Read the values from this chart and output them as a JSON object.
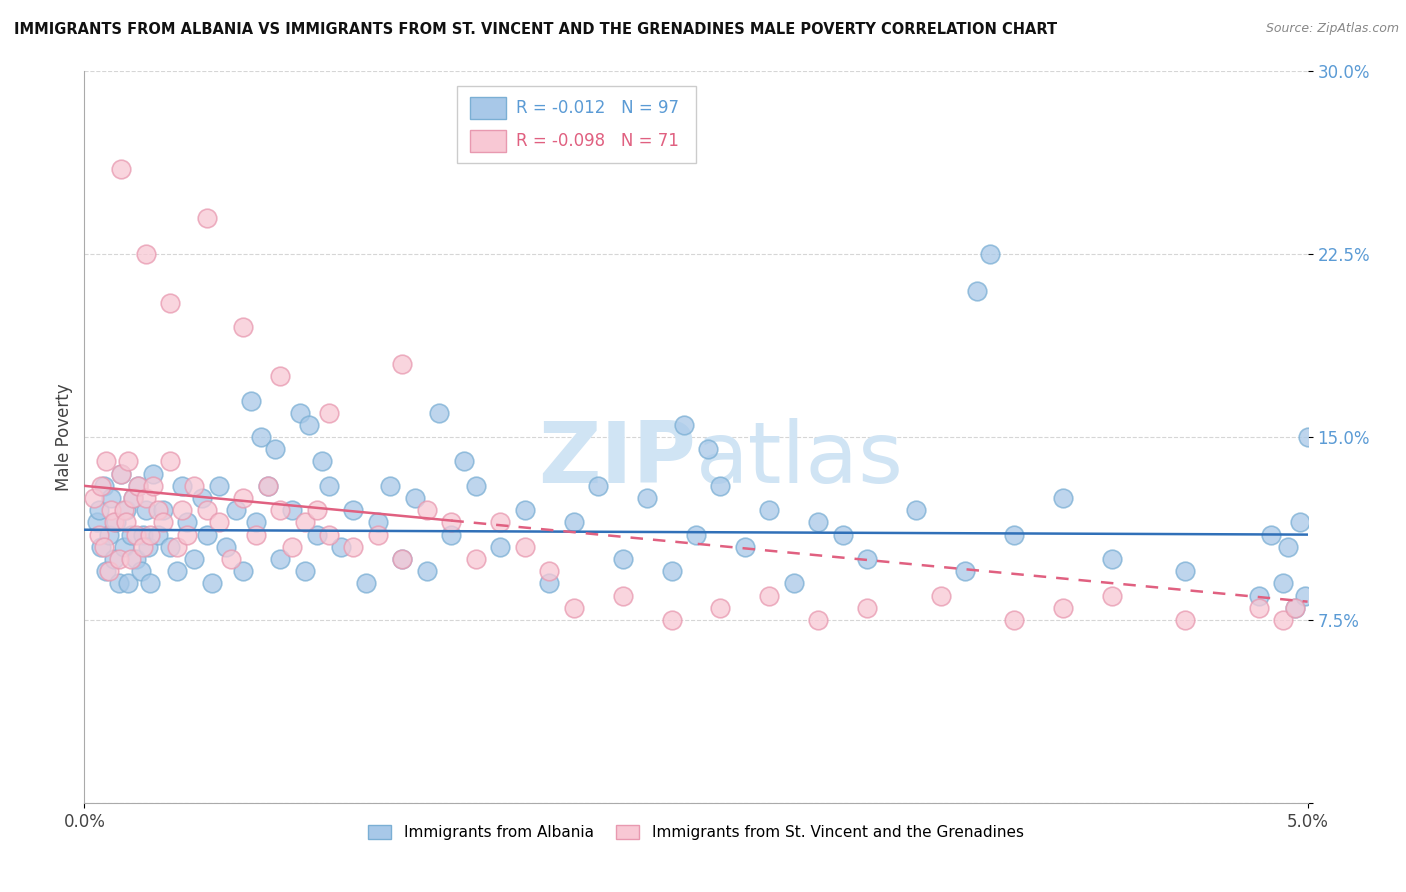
{
  "title": "IMMIGRANTS FROM ALBANIA VS IMMIGRANTS FROM ST. VINCENT AND THE GRENADINES MALE POVERTY CORRELATION CHART",
  "source": "Source: ZipAtlas.com",
  "ylabel": "Male Poverty",
  "legend_label_blue": "Immigrants from Albania",
  "legend_label_pink": "Immigrants from St. Vincent and the Grenadines",
  "legend_r_blue_val": "-0.012",
  "legend_n_blue_val": "97",
  "legend_r_pink_val": "-0.098",
  "legend_n_pink_val": "71",
  "xlim": [
    0.0,
    5.0
  ],
  "ylim": [
    0.0,
    30.0
  ],
  "color_blue": "#a8c8e8",
  "color_blue_edge": "#7bafd4",
  "color_pink": "#f8c8d4",
  "color_pink_edge": "#e899b0",
  "color_blue_line": "#3070b8",
  "color_pink_line": "#e06080",
  "background_color": "#ffffff",
  "watermark_color": "#d0e4f4",
  "blue_x": [
    0.05,
    0.06,
    0.07,
    0.08,
    0.09,
    0.1,
    0.11,
    0.12,
    0.13,
    0.14,
    0.15,
    0.16,
    0.17,
    0.18,
    0.19,
    0.2,
    0.21,
    0.22,
    0.23,
    0.24,
    0.25,
    0.26,
    0.27,
    0.28,
    0.3,
    0.32,
    0.35,
    0.38,
    0.4,
    0.42,
    0.45,
    0.48,
    0.5,
    0.52,
    0.55,
    0.58,
    0.62,
    0.65,
    0.7,
    0.75,
    0.8,
    0.85,
    0.9,
    0.95,
    1.0,
    1.05,
    1.1,
    1.15,
    1.2,
    1.25,
    1.3,
    1.35,
    1.4,
    1.5,
    1.6,
    1.7,
    1.8,
    1.9,
    2.0,
    2.1,
    2.2,
    2.3,
    2.4,
    2.5,
    2.6,
    2.7,
    2.8,
    2.9,
    3.0,
    3.2,
    3.4,
    3.6,
    3.8,
    4.0,
    4.2,
    4.5,
    4.8,
    4.85,
    4.9,
    4.92,
    4.95,
    4.97,
    4.99,
    5.0,
    3.65,
    3.7,
    2.45,
    2.55,
    1.45,
    1.55,
    0.68,
    0.72,
    0.78,
    0.88,
    0.92,
    0.97,
    3.1
  ],
  "blue_y": [
    11.5,
    12.0,
    10.5,
    13.0,
    9.5,
    11.0,
    12.5,
    10.0,
    11.5,
    9.0,
    13.5,
    10.5,
    12.0,
    9.0,
    11.0,
    12.5,
    10.0,
    13.0,
    9.5,
    11.0,
    12.0,
    10.5,
    9.0,
    13.5,
    11.0,
    12.0,
    10.5,
    9.5,
    13.0,
    11.5,
    10.0,
    12.5,
    11.0,
    9.0,
    13.0,
    10.5,
    12.0,
    9.5,
    11.5,
    13.0,
    10.0,
    12.0,
    9.5,
    11.0,
    13.0,
    10.5,
    12.0,
    9.0,
    11.5,
    13.0,
    10.0,
    12.5,
    9.5,
    11.0,
    13.0,
    10.5,
    12.0,
    9.0,
    11.5,
    13.0,
    10.0,
    12.5,
    9.5,
    11.0,
    13.0,
    10.5,
    12.0,
    9.0,
    11.5,
    10.0,
    12.0,
    9.5,
    11.0,
    12.5,
    10.0,
    9.5,
    8.5,
    11.0,
    9.0,
    10.5,
    8.0,
    11.5,
    8.5,
    15.0,
    21.0,
    22.5,
    15.5,
    14.5,
    16.0,
    14.0,
    16.5,
    15.0,
    14.5,
    16.0,
    15.5,
    14.0,
    11.0
  ],
  "pink_x": [
    0.04,
    0.06,
    0.07,
    0.08,
    0.09,
    0.1,
    0.11,
    0.12,
    0.14,
    0.15,
    0.16,
    0.17,
    0.18,
    0.19,
    0.2,
    0.21,
    0.22,
    0.24,
    0.25,
    0.27,
    0.28,
    0.3,
    0.32,
    0.35,
    0.38,
    0.4,
    0.42,
    0.45,
    0.5,
    0.55,
    0.6,
    0.65,
    0.7,
    0.75,
    0.8,
    0.85,
    0.9,
    0.95,
    1.0,
    1.1,
    1.2,
    1.3,
    1.4,
    1.5,
    1.6,
    1.7,
    1.8,
    1.9,
    2.0,
    2.2,
    2.4,
    2.6,
    2.8,
    3.0,
    3.2,
    3.5,
    3.8,
    4.0,
    4.2,
    4.5,
    4.8,
    4.9,
    4.95,
    0.15,
    0.25,
    0.35,
    0.5,
    0.65,
    0.8,
    1.0,
    1.3
  ],
  "pink_y": [
    12.5,
    11.0,
    13.0,
    10.5,
    14.0,
    9.5,
    12.0,
    11.5,
    10.0,
    13.5,
    12.0,
    11.5,
    14.0,
    10.0,
    12.5,
    11.0,
    13.0,
    10.5,
    12.5,
    11.0,
    13.0,
    12.0,
    11.5,
    14.0,
    10.5,
    12.0,
    11.0,
    13.0,
    12.0,
    11.5,
    10.0,
    12.5,
    11.0,
    13.0,
    12.0,
    10.5,
    11.5,
    12.0,
    11.0,
    10.5,
    11.0,
    10.0,
    12.0,
    11.5,
    10.0,
    11.5,
    10.5,
    9.5,
    8.0,
    8.5,
    7.5,
    8.0,
    8.5,
    7.5,
    8.0,
    8.5,
    7.5,
    8.0,
    8.5,
    7.5,
    8.0,
    7.5,
    8.0,
    26.0,
    22.5,
    20.5,
    24.0,
    19.5,
    17.5,
    16.0,
    18.0
  ]
}
